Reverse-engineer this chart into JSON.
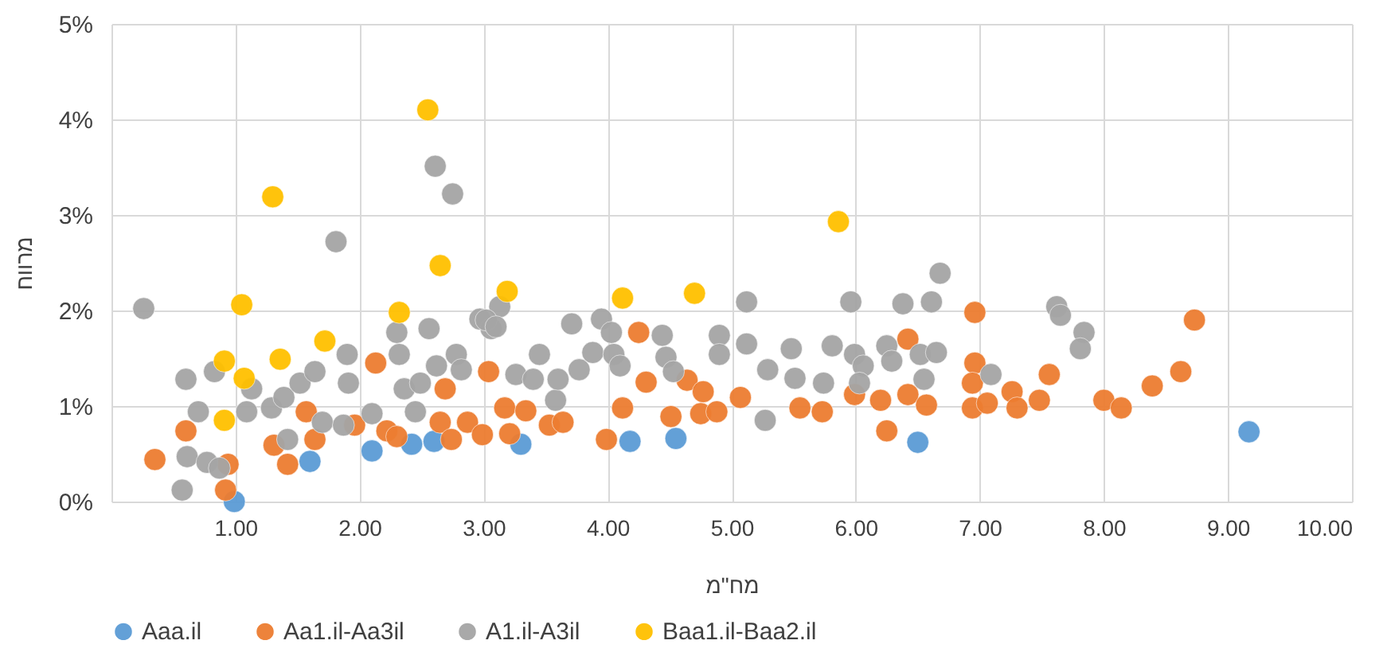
{
  "chart_data": {
    "type": "scatter",
    "xlabel": "מח\"מ",
    "ylabel": "מרווח",
    "legend": "bottom",
    "grid": true,
    "marker": "circle",
    "xlim": [
      0,
      10
    ],
    "xticks": [
      {
        "value": 0,
        "label": null
      },
      {
        "value": 1,
        "label": "1.00"
      },
      {
        "value": 2,
        "label": "2.00"
      },
      {
        "value": 3,
        "label": "3.00"
      },
      {
        "value": 4,
        "label": "4.00"
      },
      {
        "value": 5,
        "label": "5.00"
      },
      {
        "value": 6,
        "label": "6.00"
      },
      {
        "value": 7,
        "label": "7.00"
      },
      {
        "value": 8,
        "label": "8.00"
      },
      {
        "value": 9,
        "label": "9.00"
      },
      {
        "value": 10,
        "label": "10.00"
      }
    ],
    "ylim": [
      0,
      5
    ],
    "yticks": [
      {
        "value": 0,
        "label": "0%"
      },
      {
        "value": 1,
        "label": "1%"
      },
      {
        "value": 2,
        "label": "2%"
      },
      {
        "value": 3,
        "label": "3%"
      },
      {
        "value": 4,
        "label": "4%"
      },
      {
        "value": 5,
        "label": "5%"
      }
    ],
    "series": [
      {
        "name": "Aaa.il",
        "color": "#5b9bd5",
        "x": [
          0.99,
          1.6,
          2.1,
          2.42,
          2.6,
          3.3,
          4.18,
          4.55,
          6.5,
          9.17
        ],
        "values": [
          0.0,
          0.42,
          0.53,
          0.6,
          0.63,
          0.6,
          0.63,
          0.66,
          0.62,
          0.73
        ]
      },
      {
        "name": "Aa1.il-Aa3il",
        "color": "#ed7d31",
        "x": [
          0.35,
          0.6,
          0.94,
          0.92,
          1.31,
          1.42,
          1.57,
          1.64,
          1.96,
          2.13,
          2.22,
          2.3,
          2.69,
          2.65,
          2.74,
          2.87,
          2.99,
          3.04,
          3.17,
          3.21,
          3.34,
          3.53,
          3.64,
          3.99,
          4.12,
          4.25,
          4.31,
          4.51,
          4.64,
          4.77,
          4.75,
          4.88,
          5.07,
          5.55,
          5.73,
          5.99,
          6.2,
          6.25,
          6.42,
          6.42,
          6.57,
          6.96,
          6.96,
          6.94,
          6.94,
          7.06,
          7.26,
          7.3,
          7.48,
          7.56,
          8.0,
          8.14,
          8.39,
          8.62,
          8.73
        ],
        "values": [
          0.44,
          0.74,
          0.39,
          0.12,
          0.59,
          0.39,
          0.94,
          0.65,
          0.8,
          1.45,
          0.74,
          0.68,
          1.18,
          0.83,
          0.65,
          0.83,
          0.7,
          1.36,
          0.98,
          0.71,
          0.95,
          0.8,
          0.83,
          0.65,
          0.98,
          1.77,
          1.25,
          0.89,
          1.27,
          1.15,
          0.92,
          0.94,
          1.09,
          0.98,
          0.94,
          1.12,
          1.06,
          0.74,
          1.7,
          1.12,
          1.01,
          1.98,
          1.45,
          1.24,
          0.98,
          1.03,
          1.15,
          0.98,
          1.06,
          1.33,
          1.06,
          0.98,
          1.21,
          1.36,
          1.9
        ]
      },
      {
        "name": "A1.il-A3il",
        "color": "#a5a5a5",
        "x": [
          0.26,
          0.57,
          0.6,
          0.61,
          0.7,
          0.77,
          0.87,
          0.83,
          1.09,
          1.13,
          1.29,
          1.39,
          1.42,
          1.52,
          1.64,
          1.7,
          1.81,
          1.87,
          1.9,
          1.91,
          2.1,
          2.3,
          2.32,
          2.36,
          2.45,
          2.49,
          2.56,
          2.61,
          2.62,
          2.75,
          2.78,
          2.82,
          2.97,
          3.06,
          3.13,
          3.02,
          3.1,
          3.26,
          3.45,
          3.4,
          3.58,
          3.6,
          3.71,
          3.77,
          3.88,
          3.95,
          4.03,
          4.05,
          4.1,
          4.44,
          4.47,
          4.53,
          4.9,
          4.9,
          5.12,
          5.12,
          5.27,
          5.29,
          5.48,
          5.51,
          5.74,
          5.81,
          5.96,
          5.99,
          6.06,
          6.03,
          6.25,
          6.29,
          6.38,
          6.52,
          6.55,
          6.61,
          6.65,
          6.68,
          7.09,
          7.62,
          7.65,
          7.84,
          7.81
        ],
        "values": [
          2.02,
          0.12,
          1.28,
          0.47,
          0.94,
          0.41,
          0.35,
          1.36,
          0.94,
          1.18,
          0.98,
          1.09,
          0.65,
          1.24,
          1.36,
          0.83,
          2.72,
          0.8,
          1.54,
          1.24,
          0.92,
          1.77,
          1.54,
          1.18,
          0.94,
          1.24,
          1.81,
          3.51,
          1.42,
          3.22,
          1.54,
          1.38,
          1.91,
          1.81,
          2.04,
          1.9,
          1.83,
          1.33,
          1.54,
          1.28,
          1.06,
          1.28,
          1.86,
          1.38,
          1.56,
          1.91,
          1.77,
          1.54,
          1.42,
          1.74,
          1.51,
          1.36,
          1.74,
          1.54,
          2.09,
          1.65,
          0.85,
          1.38,
          1.6,
          1.29,
          1.24,
          1.63,
          2.09,
          1.54,
          1.42,
          1.24,
          1.63,
          1.47,
          2.07,
          1.54,
          1.28,
          2.09,
          1.56,
          2.39,
          1.33,
          2.04,
          1.95,
          1.77,
          1.6
        ]
      },
      {
        "name": "Baa1.il-Baa2.il",
        "color": "#ffc000",
        "x": [
          0.91,
          0.91,
          1.05,
          1.07,
          1.3,
          1.36,
          1.72,
          2.32,
          2.55,
          2.65,
          3.19,
          4.12,
          4.7,
          5.86
        ],
        "values": [
          0.85,
          1.47,
          2.06,
          1.29,
          3.19,
          1.49,
          1.68,
          1.98,
          4.1,
          2.47,
          2.2,
          2.13,
          2.18,
          2.93
        ]
      }
    ]
  }
}
